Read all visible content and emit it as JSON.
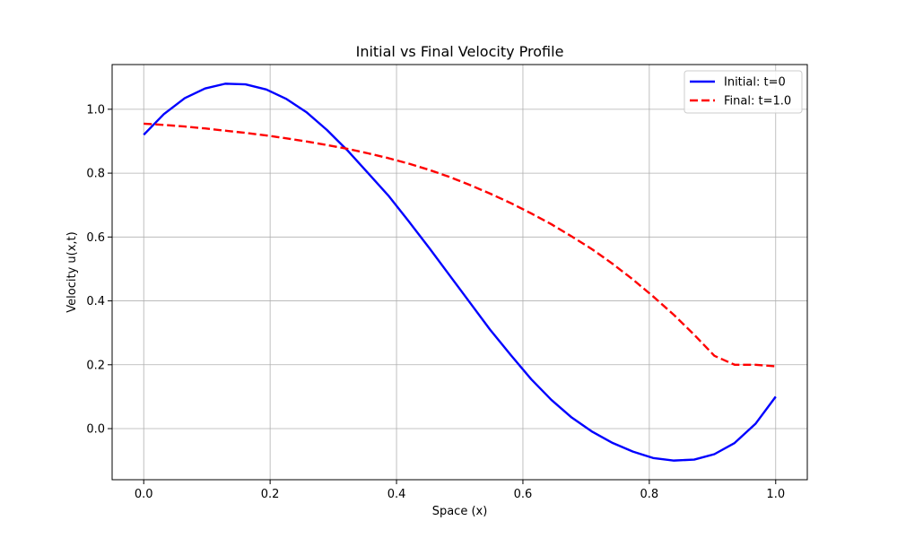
{
  "chart_data": {
    "type": "line",
    "title": "Initial vs Final Velocity Profile",
    "xlabel": "Space (x)",
    "ylabel": "Velocity u(x,t)",
    "xlim": [
      -0.05,
      1.05
    ],
    "ylim": [
      -0.16,
      1.14
    ],
    "xticks": [
      0.0,
      0.2,
      0.4,
      0.6,
      0.8,
      1.0
    ],
    "xtick_labels": [
      "0.0",
      "0.2",
      "0.4",
      "0.6",
      "0.8",
      "1.0"
    ],
    "yticks": [
      0.0,
      0.2,
      0.4,
      0.6,
      0.8,
      1.0
    ],
    "ytick_labels": [
      "0.0",
      "0.2",
      "0.4",
      "0.6",
      "0.8",
      "1.0"
    ],
    "grid": true,
    "legend_position": "top-right",
    "series": [
      {
        "name": "Initial: t=0",
        "color": "#0000ff",
        "dash": "solid",
        "x": [
          0.0,
          0.032,
          0.065,
          0.097,
          0.129,
          0.161,
          0.194,
          0.226,
          0.258,
          0.29,
          0.323,
          0.355,
          0.387,
          0.419,
          0.452,
          0.484,
          0.516,
          0.548,
          0.581,
          0.613,
          0.645,
          0.677,
          0.71,
          0.742,
          0.774,
          0.806,
          0.839,
          0.871,
          0.903,
          0.935,
          0.968,
          1.0
        ],
        "y": [
          0.92,
          0.985,
          1.035,
          1.065,
          1.08,
          1.078,
          1.062,
          1.032,
          0.99,
          0.935,
          0.87,
          0.8,
          0.73,
          0.65,
          0.565,
          0.48,
          0.395,
          0.31,
          0.23,
          0.155,
          0.09,
          0.035,
          -0.01,
          -0.045,
          -0.072,
          -0.092,
          -0.1,
          -0.097,
          -0.08,
          -0.045,
          0.015,
          0.1
        ]
      },
      {
        "name": "Final: t=1.0",
        "color": "#ff0000",
        "dash": "dashed",
        "x": [
          0.0,
          0.032,
          0.065,
          0.097,
          0.129,
          0.161,
          0.194,
          0.226,
          0.258,
          0.29,
          0.323,
          0.355,
          0.387,
          0.419,
          0.452,
          0.484,
          0.516,
          0.548,
          0.581,
          0.613,
          0.645,
          0.677,
          0.71,
          0.742,
          0.774,
          0.806,
          0.839,
          0.871,
          0.903,
          0.935,
          0.968,
          1.0
        ],
        "y": [
          0.955,
          0.951,
          0.946,
          0.94,
          0.933,
          0.926,
          0.918,
          0.909,
          0.899,
          0.888,
          0.876,
          0.862,
          0.847,
          0.83,
          0.81,
          0.788,
          0.763,
          0.736,
          0.706,
          0.674,
          0.64,
          0.602,
          0.561,
          0.516,
          0.467,
          0.414,
          0.356,
          0.294,
          0.228,
          0.2,
          0.2,
          0.195
        ]
      }
    ]
  }
}
